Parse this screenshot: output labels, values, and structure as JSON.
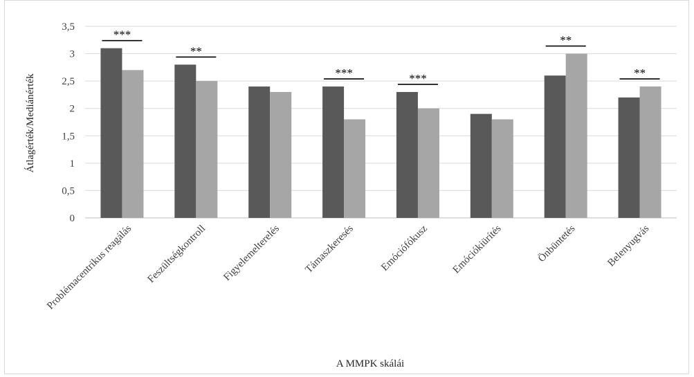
{
  "chart_data": {
    "type": "bar",
    "categories": [
      "Problémacentrikus reagálás",
      "Feszültségkontroll",
      "Figyelemelterelés",
      "Támaszkeresés",
      "Emóciófókusz",
      "Emóciókiürítés",
      "Önbüntetés",
      "Belenyugvás"
    ],
    "series": [
      {
        "values": [
          3.1,
          2.8,
          2.4,
          2.4,
          2.3,
          1.9,
          2.6,
          2.2
        ]
      },
      {
        "values": [
          2.7,
          2.5,
          2.3,
          1.8,
          2.0,
          1.8,
          3.0,
          2.4
        ]
      }
    ],
    "colors": [
      "#595959",
      "#a6a6a6"
    ],
    "significance": [
      "***",
      "**",
      "",
      "***",
      "***",
      "",
      "**",
      "**"
    ],
    "ylim": [
      0,
      3.5
    ],
    "yticks": [
      "0",
      "0,5",
      "1",
      "1,5",
      "2",
      "2,5",
      "3",
      "3,5"
    ],
    "xlabel": "A MMPK skálái",
    "ylabel": "Átlagérték/Mediánérték",
    "grid": true
  }
}
